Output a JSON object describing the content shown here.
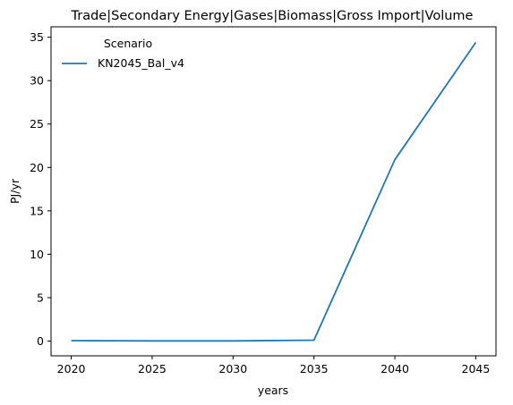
{
  "chart_data": {
    "type": "line",
    "title": "Trade|Secondary Energy|Gases|Biomass|Gross Import|Volume",
    "xlabel": "years",
    "ylabel": "PJ/yr",
    "x": [
      2020,
      2025,
      2030,
      2035,
      2040,
      2045
    ],
    "xticks": [
      2020,
      2025,
      2030,
      2035,
      2040,
      2045
    ],
    "yticks": [
      0,
      5,
      10,
      15,
      20,
      25,
      30,
      35
    ],
    "xlim": [
      2018.75,
      2046.25
    ],
    "ylim": [
      -1.7,
      36.2
    ],
    "grid": false,
    "legend": {
      "title": "Scenario",
      "placement": "top-left"
    },
    "series": [
      {
        "name": "KN2045_Bal_v4",
        "color": "#1f77b4",
        "values": [
          0.05,
          0.02,
          0.02,
          0.1,
          20.9,
          34.4
        ]
      }
    ]
  }
}
